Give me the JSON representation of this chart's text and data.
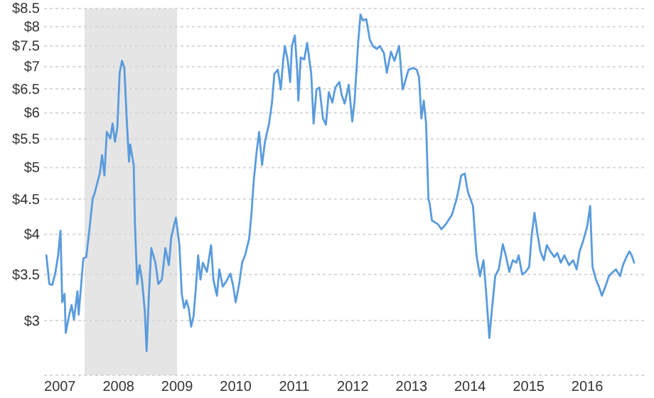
{
  "chart_data": {
    "type": "line",
    "x": [
      2007.27,
      2007.32,
      2007.37,
      2007.42,
      2007.47,
      2007.51,
      2007.54,
      2007.58,
      2007.6,
      2007.66,
      2007.7,
      2007.74,
      2007.8,
      2007.82,
      2007.9,
      2007.95,
      2008.0,
      2008.06,
      2008.09,
      2008.18,
      2008.22,
      2008.26,
      2008.3,
      2008.36,
      2008.4,
      2008.44,
      2008.48,
      2008.52,
      2008.56,
      2008.6,
      2008.64,
      2008.68,
      2008.7,
      2008.76,
      2008.78,
      2008.82,
      2008.86,
      2008.9,
      2008.95,
      2008.98,
      2009.02,
      2009.06,
      2009.13,
      2009.18,
      2009.24,
      2009.3,
      2009.36,
      2009.4,
      2009.48,
      2009.54,
      2009.58,
      2009.62,
      2009.66,
      2009.7,
      2009.74,
      2009.78,
      2009.82,
      2009.86,
      2009.9,
      2009.94,
      2010.01,
      2010.08,
      2010.12,
      2010.18,
      2010.22,
      2010.28,
      2010.34,
      2010.41,
      2010.46,
      2010.5,
      2010.56,
      2010.61,
      2010.66,
      2010.73,
      2010.77,
      2010.81,
      2010.86,
      2010.9,
      2010.95,
      2011.0,
      2011.07,
      2011.12,
      2011.16,
      2011.22,
      2011.27,
      2011.31,
      2011.34,
      2011.39,
      2011.43,
      2011.46,
      2011.51,
      2011.55,
      2011.57,
      2011.61,
      2011.67,
      2011.72,
      2011.79,
      2011.83,
      2011.88,
      2011.93,
      2011.99,
      2012.04,
      2012.09,
      2012.15,
      2012.2,
      2012.27,
      2012.31,
      2012.36,
      2012.43,
      2012.49,
      2012.53,
      2012.59,
      2012.63,
      2012.67,
      2012.73,
      2012.79,
      2012.84,
      2012.91,
      2012.96,
      2013.03,
      2013.08,
      2013.15,
      2013.21,
      2013.29,
      2013.35,
      2013.39,
      2013.45,
      2013.53,
      2013.59,
      2013.63,
      2013.67,
      2013.71,
      2013.75,
      2013.79,
      2013.81,
      2013.85,
      2013.95,
      2014.01,
      2014.09,
      2014.19,
      2014.27,
      2014.31,
      2014.35,
      2014.41,
      2014.45,
      2014.47,
      2014.55,
      2014.61,
      2014.67,
      2014.73,
      2014.77,
      2014.83,
      2014.87,
      2014.93,
      2014.99,
      2015.06,
      2015.11,
      2015.17,
      2015.23,
      2015.29,
      2015.33,
      2015.39,
      2015.45,
      2015.51,
      2015.55,
      2015.6,
      2015.65,
      2015.7,
      2015.76,
      2015.81,
      2015.87,
      2015.94,
      2015.99,
      2016.05,
      2016.11,
      2016.19,
      2016.26,
      2016.32,
      2016.37,
      2016.43,
      2016.5,
      2016.55,
      2016.59,
      2016.65,
      2016.7,
      2016.75,
      2016.81,
      2016.87,
      2016.94,
      2016.99,
      2017.06,
      2017.11,
      2017.17,
      2017.22,
      2017.26,
      2017.3
    ],
    "series": [
      {
        "color": "#5a9bdc",
        "values": [
          3.73,
          3.39,
          3.38,
          3.51,
          3.73,
          4.05,
          3.19,
          3.28,
          2.88,
          3.06,
          3.16,
          3.01,
          3.31,
          3.06,
          3.69,
          3.71,
          4.04,
          4.51,
          4.58,
          4.9,
          5.21,
          4.87,
          5.63,
          5.51,
          5.79,
          5.45,
          5.71,
          6.86,
          7.14,
          6.97,
          5.89,
          5.1,
          5.4,
          5.04,
          4.16,
          3.39,
          3.61,
          3.44,
          3.09,
          2.71,
          3.28,
          3.82,
          3.64,
          3.39,
          3.44,
          3.82,
          3.61,
          3.96,
          4.23,
          3.86,
          3.28,
          3.13,
          3.21,
          3.12,
          2.94,
          3.04,
          3.34,
          3.73,
          3.44,
          3.64,
          3.53,
          3.86,
          3.44,
          3.26,
          3.56,
          3.36,
          3.42,
          3.51,
          3.36,
          3.19,
          3.39,
          3.64,
          3.73,
          3.94,
          4.29,
          4.8,
          5.29,
          5.63,
          5.04,
          5.45,
          5.79,
          6.21,
          6.83,
          6.93,
          6.49,
          7.14,
          7.5,
          7.14,
          6.65,
          7.5,
          7.77,
          6.93,
          6.25,
          7.22,
          7.17,
          7.58,
          6.83,
          5.79,
          6.49,
          6.53,
          5.89,
          5.77,
          6.43,
          6.21,
          6.53,
          6.65,
          6.37,
          6.19,
          6.59,
          5.83,
          6.25,
          7.58,
          8.33,
          8.17,
          8.2,
          7.66,
          7.5,
          7.43,
          7.5,
          7.33,
          6.86,
          7.36,
          7.14,
          7.5,
          6.49,
          6.65,
          6.93,
          6.97,
          6.93,
          6.76,
          5.89,
          6.25,
          5.79,
          4.5,
          4.44,
          4.19,
          4.14,
          4.07,
          4.14,
          4.27,
          4.5,
          4.67,
          4.87,
          4.9,
          4.67,
          4.59,
          4.4,
          3.73,
          3.48,
          3.67,
          3.34,
          2.83,
          3.09,
          3.48,
          3.56,
          3.87,
          3.73,
          3.53,
          3.67,
          3.64,
          3.73,
          3.5,
          3.53,
          3.59,
          3.97,
          4.3,
          4.01,
          3.78,
          3.67,
          3.86,
          3.78,
          3.71,
          3.76,
          3.64,
          3.73,
          3.61,
          3.67,
          3.56,
          3.78,
          3.91,
          4.11,
          4.4,
          3.59,
          3.44,
          3.36,
          3.26,
          3.36,
          3.48,
          3.53,
          3.56,
          3.48,
          3.61,
          3.71,
          3.78,
          3.73,
          3.64
        ]
      }
    ],
    "xlim": [
      2007.23,
      2017.47
    ],
    "xticks": [
      {
        "value": 2007.5,
        "label": "2007"
      },
      {
        "value": 2008.5,
        "label": "2008"
      },
      {
        "value": 2009.5,
        "label": "2009"
      },
      {
        "value": 2010.5,
        "label": "2010"
      },
      {
        "value": 2011.5,
        "label": "2011"
      },
      {
        "value": 2012.5,
        "label": "2012"
      },
      {
        "value": 2013.5,
        "label": "2013"
      },
      {
        "value": 2014.5,
        "label": "2014"
      },
      {
        "value": 2015.5,
        "label": "2015"
      },
      {
        "value": 2016.5,
        "label": "2016"
      }
    ],
    "ylim": [
      2.5,
      8.5
    ],
    "yticks": [
      {
        "value": 2.5,
        "label": null
      },
      {
        "value": 3,
        "label": "$3"
      },
      {
        "value": 3.5,
        "label": "$3.5"
      },
      {
        "value": 4,
        "label": "$4"
      },
      {
        "value": 4.5,
        "label": "$4.5"
      },
      {
        "value": 5,
        "label": "$5"
      },
      {
        "value": 5.5,
        "label": "$5.5"
      },
      {
        "value": 6,
        "label": "$6"
      },
      {
        "value": 6.5,
        "label": "$6.5"
      },
      {
        "value": 7,
        "label": "$7"
      },
      {
        "value": 7.5,
        "label": "$7.5"
      },
      {
        "value": 8,
        "label": "$8"
      },
      {
        "value": 8.5,
        "label": "$8.5"
      }
    ],
    "log": true,
    "grid": "y",
    "bands": [
      {
        "axis": "x",
        "from": 2007.92,
        "to": 2009.5,
        "color": "#e5e5e5"
      }
    ]
  }
}
